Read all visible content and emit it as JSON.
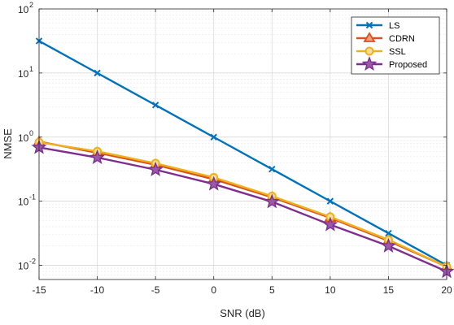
{
  "chart_data": {
    "type": "line",
    "x": [
      -15,
      -10,
      -5,
      0,
      5,
      10,
      15,
      20
    ],
    "xlim": [
      -15,
      20
    ],
    "xticks": [
      -15,
      -10,
      -5,
      0,
      5,
      10,
      15,
      20
    ],
    "xlabel": "SNR (dB)",
    "ylabel": "NMSE",
    "yscale": "log",
    "ylim": [
      0.006,
      100
    ],
    "yticks": [
      {
        "base": "10",
        "exp": "2"
      },
      {
        "base": "10",
        "exp": "1"
      },
      {
        "base": "10",
        "exp": "0"
      },
      {
        "base": "10",
        "exp": "-1"
      },
      {
        "base": "10",
        "exp": "-2"
      }
    ],
    "ytick_values": [
      100,
      10,
      1,
      0.1,
      0.01
    ],
    "grid": true,
    "legend_position": "top-right",
    "series": [
      {
        "name": "LS",
        "color": "#0072BD",
        "marker": "x",
        "values": [
          31.6,
          10,
          3.16,
          1,
          0.316,
          0.1,
          0.0316,
          0.01
        ]
      },
      {
        "name": "CDRN",
        "color": "#D95319",
        "marker": "triangle",
        "values": [
          0.85,
          0.57,
          0.37,
          0.22,
          0.115,
          0.055,
          0.024,
          0.0095
        ]
      },
      {
        "name": "SSL",
        "color": "#EDB120",
        "marker": "circle",
        "values": [
          0.83,
          0.6,
          0.39,
          0.235,
          0.12,
          0.057,
          0.025,
          0.0095
        ]
      },
      {
        "name": "Proposed",
        "color": "#7E2F8E",
        "marker": "star",
        "values": [
          0.69,
          0.48,
          0.31,
          0.185,
          0.098,
          0.043,
          0.02,
          0.008
        ]
      }
    ]
  }
}
